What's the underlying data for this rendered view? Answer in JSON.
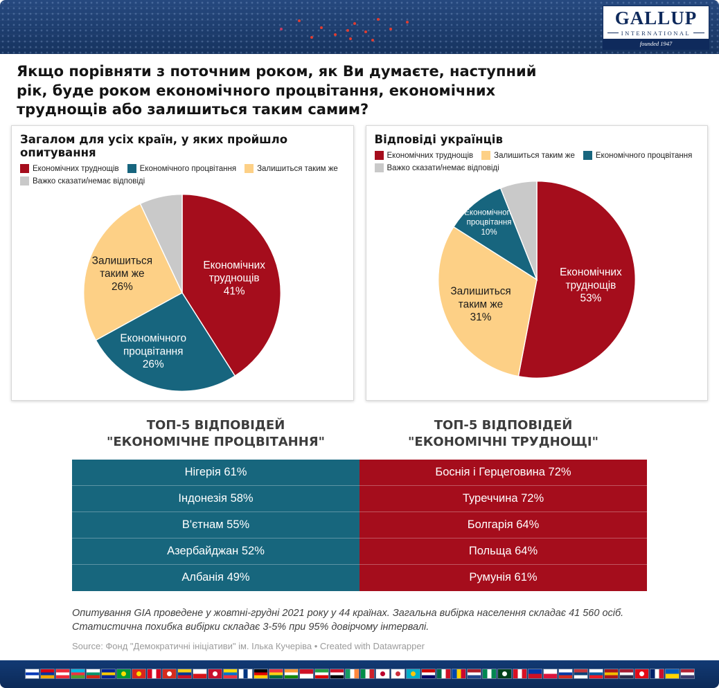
{
  "logo": {
    "name": "GALLUP",
    "subtitle": "INTERNATIONAL",
    "founded": "founded 1947"
  },
  "title": "Якщо порівняти з поточним роком, як Ви думаєте, наступний рік, буде роком економічного процвітання, економічних труднощів або залишиться таким самим?",
  "chart_data": [
    {
      "type": "pie",
      "title": "Загалом для усіх країн, у яких пройшло опитування",
      "categories": [
        "Економічних труднощів",
        "Економічного процвітання",
        "Залишиться таким же",
        "Важко сказати/немає відповіді"
      ],
      "values": [
        41,
        26,
        26,
        7
      ],
      "legend": [
        {
          "label": "Економічних труднощів",
          "color": "#a50d1c"
        },
        {
          "label": "Економічного процвітання",
          "color": "#17657e"
        },
        {
          "label": "Залишиться таким же",
          "color": "#fdd086"
        },
        {
          "label": "Важко сказати/немає відповіді",
          "color": "#c9c9c9"
        }
      ],
      "slices": [
        {
          "label": "Економічних труднощів",
          "pct": 41,
          "color": "#a50d1c",
          "text_color": "#ffffff",
          "lines": [
            "Економічних",
            "труднощів"
          ],
          "show_pct": true,
          "label_r": 0.55,
          "font_size": 16
        },
        {
          "label": "Економічного процвітання",
          "pct": 26,
          "color": "#17657e",
          "text_color": "#ffffff",
          "lines": [
            "Економічного",
            "процвітання"
          ],
          "show_pct": true,
          "label_r": 0.66,
          "label_angle_offset": 12,
          "font_size": 16
        },
        {
          "label": "Залишиться таким же",
          "pct": 26,
          "color": "#fdd086",
          "text_color": "#1a1a1a",
          "lines": [
            "Залишиться",
            "таким же"
          ],
          "show_pct": true,
          "label_r": 0.64,
          "font_size": 16
        },
        {
          "label": "Важко сказати/немає відповіді",
          "pct": 7,
          "color": "#c9c9c9",
          "text_color": "#1a1a1a"
        }
      ]
    },
    {
      "type": "pie",
      "title": "Відповіді українців",
      "categories": [
        "Економічних труднощів",
        "Залишиться таким же",
        "Економічного процвітання",
        "Важко сказати/немає відповіді"
      ],
      "values": [
        53,
        31,
        10,
        6
      ],
      "legend": [
        {
          "label": "Економічних труднощів",
          "color": "#a50d1c"
        },
        {
          "label": "Залишиться таким же",
          "color": "#fdd086"
        },
        {
          "label": "Економічного процвітання",
          "color": "#17657e"
        },
        {
          "label": "Важко сказати/немає відповіді",
          "color": "#c9c9c9"
        }
      ],
      "slices": [
        {
          "label": "Економічних труднощів",
          "pct": 53,
          "color": "#a50d1c",
          "text_color": "#ffffff",
          "lines": [
            "Економічних",
            "труднощів"
          ],
          "show_pct": true,
          "label_r": 0.55,
          "font_size": 16
        },
        {
          "label": "Залишиться таким же",
          "pct": 31,
          "color": "#fdd086",
          "text_color": "#1a1a1a",
          "lines": [
            "Залишиться",
            "таким же"
          ],
          "show_pct": true,
          "label_r": 0.62,
          "font_size": 16
        },
        {
          "label": "Економічного процвітання",
          "pct": 10,
          "color": "#17657e",
          "text_color": "#ffffff",
          "lines": [
            "Економічного",
            "процвітання"
          ],
          "show_pct": true,
          "label_r": 0.76,
          "font_size": 12
        },
        {
          "label": "Важко сказати/немає відповіді",
          "pct": 6,
          "color": "#c9c9c9",
          "text_color": "#1a1a1a"
        }
      ]
    },
    {
      "type": "table",
      "left_title": "ТОП-5 ВІДПОВІДЕЙ \"ЕКОНОМІЧНЕ ПРОЦВІТАННЯ\"",
      "right_title": "ТОП-5 ВІДПОВІДЕЙ \"ЕКОНОМІЧНІ ТРУДНОЩІ\"",
      "left_color": "#17667d",
      "right_color": "#a50d1c",
      "left_rows": [
        "Нігерія 61%",
        "Індонезія 58%",
        "В'єтнам 55%",
        "Азербайджан 52%",
        "Албанія 49%"
      ],
      "right_rows": [
        "Боснія і Герцеговина 72%",
        "Туреччина 72%",
        "Болгарія 64%",
        "Польща 64%",
        "Румунія 61%"
      ]
    }
  ],
  "footnote": "Опитування GIA проведене у жовтні-грудні 2021 року у 44 країнах. Загальна вибірка населення складає 41 560 осіб. Статистична похибка вибірки складає 3-5% при 95% довірчому інтервалі.",
  "source": "Source: Фонд \"Демократичні ініціативи\" ім. Ілька Кучеріва • Created with Datawrapper",
  "flags": [
    {
      "name": "israel",
      "dir": "h",
      "colors": [
        "#ffffff",
        "#0038b8",
        "#ffffff"
      ]
    },
    {
      "name": "armenia",
      "dir": "h",
      "colors": [
        "#d90012",
        "#0033a0",
        "#f2a800"
      ]
    },
    {
      "name": "austria",
      "dir": "h",
      "colors": [
        "#ed2939",
        "#ffffff",
        "#ed2939"
      ]
    },
    {
      "name": "azerbaijan",
      "dir": "h",
      "colors": [
        "#00b9e4",
        "#ef3340",
        "#509e2f"
      ]
    },
    {
      "name": "bulgaria",
      "dir": "h",
      "colors": [
        "#ffffff",
        "#00966e",
        "#d62612"
      ]
    },
    {
      "name": "bosnia",
      "dir": "h",
      "colors": [
        "#002395",
        "#fecb00",
        "#002395"
      ]
    },
    {
      "name": "brazil",
      "dir": "disc",
      "colors": [
        "#009739",
        "#ffdf00"
      ]
    },
    {
      "name": "vietnam",
      "dir": "disc",
      "colors": [
        "#da251d",
        "#ffde00"
      ]
    },
    {
      "name": "canada",
      "dir": "v",
      "colors": [
        "#d80621",
        "#ffffff",
        "#d80621"
      ]
    },
    {
      "name": "switzerland",
      "dir": "disc",
      "colors": [
        "#d52b1e",
        "#ffffff"
      ]
    },
    {
      "name": "colombia",
      "dir": "h",
      "colors": [
        "#fcd116",
        "#003893",
        "#ce1126"
      ]
    },
    {
      "name": "czechia",
      "dir": "h",
      "colors": [
        "#ffffff",
        "#d7141a"
      ]
    },
    {
      "name": "denmark",
      "dir": "disc",
      "colors": [
        "#c8102e",
        "#ffffff"
      ]
    },
    {
      "name": "ecuador",
      "dir": "h",
      "colors": [
        "#ffdd00",
        "#0072ce",
        "#ef3340"
      ]
    },
    {
      "name": "finland",
      "dir": "v",
      "colors": [
        "#ffffff",
        "#003580",
        "#ffffff"
      ]
    },
    {
      "name": "germany",
      "dir": "h",
      "colors": [
        "#000000",
        "#dd0000",
        "#ffce00"
      ]
    },
    {
      "name": "ghana",
      "dir": "h",
      "colors": [
        "#ef3340",
        "#fcd116",
        "#006b3f"
      ]
    },
    {
      "name": "india",
      "dir": "h",
      "colors": [
        "#ff9933",
        "#ffffff",
        "#138808"
      ]
    },
    {
      "name": "indonesia",
      "dir": "h",
      "colors": [
        "#ce1126",
        "#ffffff"
      ]
    },
    {
      "name": "iran",
      "dir": "h",
      "colors": [
        "#239f40",
        "#ffffff",
        "#da0000"
      ]
    },
    {
      "name": "iraq",
      "dir": "h",
      "colors": [
        "#ce1126",
        "#ffffff",
        "#000000"
      ]
    },
    {
      "name": "ireland",
      "dir": "v",
      "colors": [
        "#169b62",
        "#ffffff",
        "#ff883e"
      ]
    },
    {
      "name": "italy",
      "dir": "v",
      "colors": [
        "#008c45",
        "#f4f5f0",
        "#cd212a"
      ]
    },
    {
      "name": "japan",
      "dir": "disc",
      "colors": [
        "#ffffff",
        "#bc002d"
      ]
    },
    {
      "name": "south-korea",
      "dir": "disc",
      "colors": [
        "#ffffff",
        "#cd2e3a"
      ]
    },
    {
      "name": "kazakhstan",
      "dir": "disc",
      "colors": [
        "#00afca",
        "#fec50c"
      ]
    },
    {
      "name": "malaysia",
      "dir": "h",
      "colors": [
        "#cc0001",
        "#ffffff",
        "#010066"
      ]
    },
    {
      "name": "mexico",
      "dir": "v",
      "colors": [
        "#006847",
        "#ffffff",
        "#ce1126"
      ]
    },
    {
      "name": "moldova",
      "dir": "v",
      "colors": [
        "#0046ae",
        "#ffd200",
        "#cc092f"
      ]
    },
    {
      "name": "netherlands",
      "dir": "h",
      "colors": [
        "#ae1c28",
        "#ffffff",
        "#21468b"
      ]
    },
    {
      "name": "nigeria",
      "dir": "v",
      "colors": [
        "#008751",
        "#ffffff",
        "#008751"
      ]
    },
    {
      "name": "pakistan",
      "dir": "disc",
      "colors": [
        "#01411c",
        "#ffffff"
      ]
    },
    {
      "name": "peru",
      "dir": "v",
      "colors": [
        "#d91023",
        "#ffffff",
        "#d91023"
      ]
    },
    {
      "name": "philippines",
      "dir": "h",
      "colors": [
        "#0038a8",
        "#ce1126"
      ]
    },
    {
      "name": "poland",
      "dir": "h",
      "colors": [
        "#ffffff",
        "#dc143c"
      ]
    },
    {
      "name": "russia",
      "dir": "h",
      "colors": [
        "#ffffff",
        "#0039a6",
        "#d52b1e"
      ]
    },
    {
      "name": "serbia",
      "dir": "h",
      "colors": [
        "#c6363c",
        "#0c4076",
        "#ffffff"
      ]
    },
    {
      "name": "slovenia",
      "dir": "h",
      "colors": [
        "#ffffff",
        "#005da4",
        "#ed1c24"
      ]
    },
    {
      "name": "spain",
      "dir": "h",
      "colors": [
        "#aa151b",
        "#f1bf00",
        "#aa151b"
      ]
    },
    {
      "name": "thailand",
      "dir": "h",
      "colors": [
        "#a51931",
        "#f4f5f8",
        "#2d2a4a"
      ]
    },
    {
      "name": "turkey",
      "dir": "disc",
      "colors": [
        "#e30a17",
        "#ffffff"
      ]
    },
    {
      "name": "uk",
      "dir": "v",
      "colors": [
        "#012169",
        "#ffffff",
        "#c8102e"
      ]
    },
    {
      "name": "ukraine",
      "dir": "h",
      "colors": [
        "#005bbb",
        "#ffd500"
      ]
    },
    {
      "name": "usa",
      "dir": "h",
      "colors": [
        "#b22234",
        "#ffffff",
        "#3c3b6e"
      ]
    }
  ]
}
